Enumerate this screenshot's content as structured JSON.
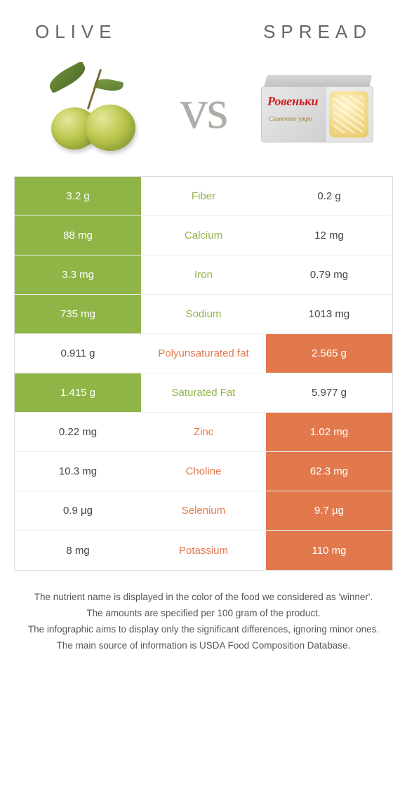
{
  "titles": {
    "left": "OLIVE",
    "right": "SPREAD"
  },
  "vs_text": "vs",
  "brand_text": "Ровеньки",
  "brand_sub": "Сливочное утро",
  "colors": {
    "left_win": "#8fb547",
    "right_win": "#e1794d",
    "text": "#555555",
    "border": "#dddddd"
  },
  "rows": [
    {
      "left": "3.2 g",
      "label": "Fiber",
      "right": "0.2 g",
      "winner": "left"
    },
    {
      "left": "88 mg",
      "label": "Calcium",
      "right": "12 mg",
      "winner": "left"
    },
    {
      "left": "3.3 mg",
      "label": "Iron",
      "right": "0.79 mg",
      "winner": "left"
    },
    {
      "left": "735 mg",
      "label": "Sodium",
      "right": "1013 mg",
      "winner": "left"
    },
    {
      "left": "0.911 g",
      "label": "Polyunsaturated fat",
      "right": "2.565 g",
      "winner": "right"
    },
    {
      "left": "1.415 g",
      "label": "Saturated Fat",
      "right": "5.977 g",
      "winner": "left"
    },
    {
      "left": "0.22 mg",
      "label": "Zinc",
      "right": "1.02 mg",
      "winner": "right"
    },
    {
      "left": "10.3 mg",
      "label": "Choline",
      "right": "62.3 mg",
      "winner": "right"
    },
    {
      "left": "0.9 µg",
      "label": "Selenium",
      "right": "9.7 µg",
      "winner": "right"
    },
    {
      "left": "8 mg",
      "label": "Potassium",
      "right": "110 mg",
      "winner": "right"
    }
  ],
  "notes": [
    "The nutrient name is displayed in the color of the food we considered as 'winner'.",
    "The amounts are specified per 100 gram of the product.",
    "The infographic aims to display only the significant differences, ignoring minor ones.",
    "The main source of information is USDA Food Composition Database."
  ]
}
